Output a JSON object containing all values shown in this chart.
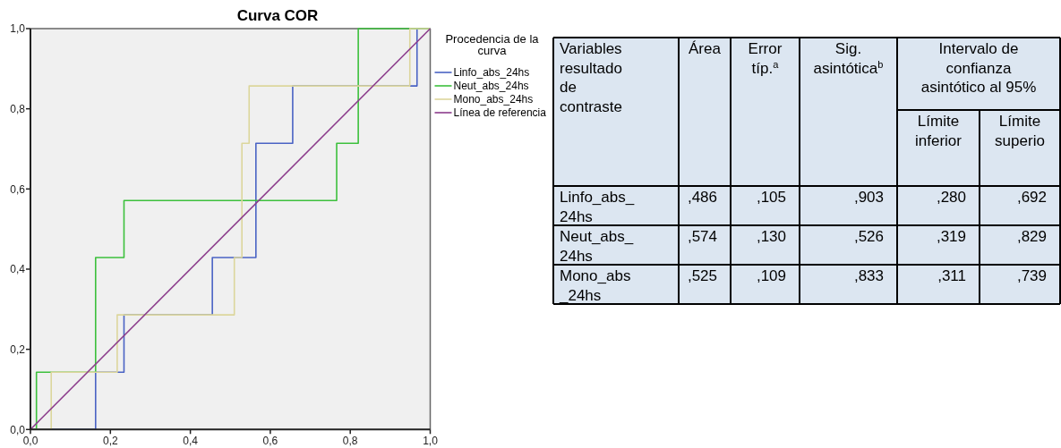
{
  "chart_data": [
    {
      "type": "step",
      "title": "Curva COR",
      "legend_title": "Procedencia de la curva",
      "legend": "right",
      "xlim": [
        0,
        1
      ],
      "ylim": [
        0,
        1
      ],
      "xticks": [
        {
          "value": 0,
          "label": "0,0"
        },
        {
          "value": 0.2,
          "label": "0,2"
        },
        {
          "value": 0.4,
          "label": "0,4"
        },
        {
          "value": 0.6,
          "label": "0,6"
        },
        {
          "value": 0.8,
          "label": "0,8"
        },
        {
          "value": 1,
          "label": "1,0"
        }
      ],
      "yticks": [
        {
          "value": 0,
          "label": "0,0"
        },
        {
          "value": 0.2,
          "label": "0,2"
        },
        {
          "value": 0.4,
          "label": "0,4"
        },
        {
          "value": 0.6,
          "label": "0,6"
        },
        {
          "value": 0.8,
          "label": "0,8"
        },
        {
          "value": 1,
          "label": "1,0"
        }
      ],
      "series": [
        {
          "name": "Linfo_abs_24hs",
          "color": "#4a63c4",
          "x": [
            0,
            0.163,
            0.234,
            0.455,
            0.564,
            0.656,
            0.967,
            1
          ],
          "values": [
            0,
            0.143,
            0.286,
            0.429,
            0.714,
            0.857,
            1,
            1
          ]
        },
        {
          "name": "Neut_abs_24hs",
          "color": "#3cc03c",
          "x": [
            0,
            0.015,
            0.163,
            0.234,
            0.766,
            0.82,
            1
          ],
          "values": [
            0,
            0.143,
            0.429,
            0.571,
            0.714,
            1,
            1
          ]
        },
        {
          "name": "Mono_abs_24hs",
          "color": "#dcd69c",
          "x": [
            0,
            0.052,
            0.217,
            0.51,
            0.529,
            0.547,
            0.949,
            1
          ],
          "values": [
            0,
            0.143,
            0.286,
            0.429,
            0.714,
            0.857,
            1,
            1
          ]
        },
        {
          "name": "Línea de referencia",
          "type": "line",
          "color": "#8c3d8c",
          "x": [
            0,
            1
          ],
          "values": [
            0,
            1
          ]
        }
      ]
    },
    {
      "type": "other",
      "annotations": [
        "Variables resultado de contraste",
        "Área",
        "Error típ.$^{a}$",
        "Sig. asintótica$^{b}$",
        "Intervalo de confianza asintótico al 95%",
        "Límite inferior",
        "Límite superio",
        "Linfo_abs_24hs",
        ",486",
        ",105",
        ",903",
        ",280",
        ",692",
        "Neut_abs_24hs",
        ",574",
        ",130",
        ",526",
        ",319",
        ",829",
        "Mono_abs_24hs",
        ",525",
        ",109",
        ",833",
        ",311",
        ",739"
      ]
    }
  ]
}
